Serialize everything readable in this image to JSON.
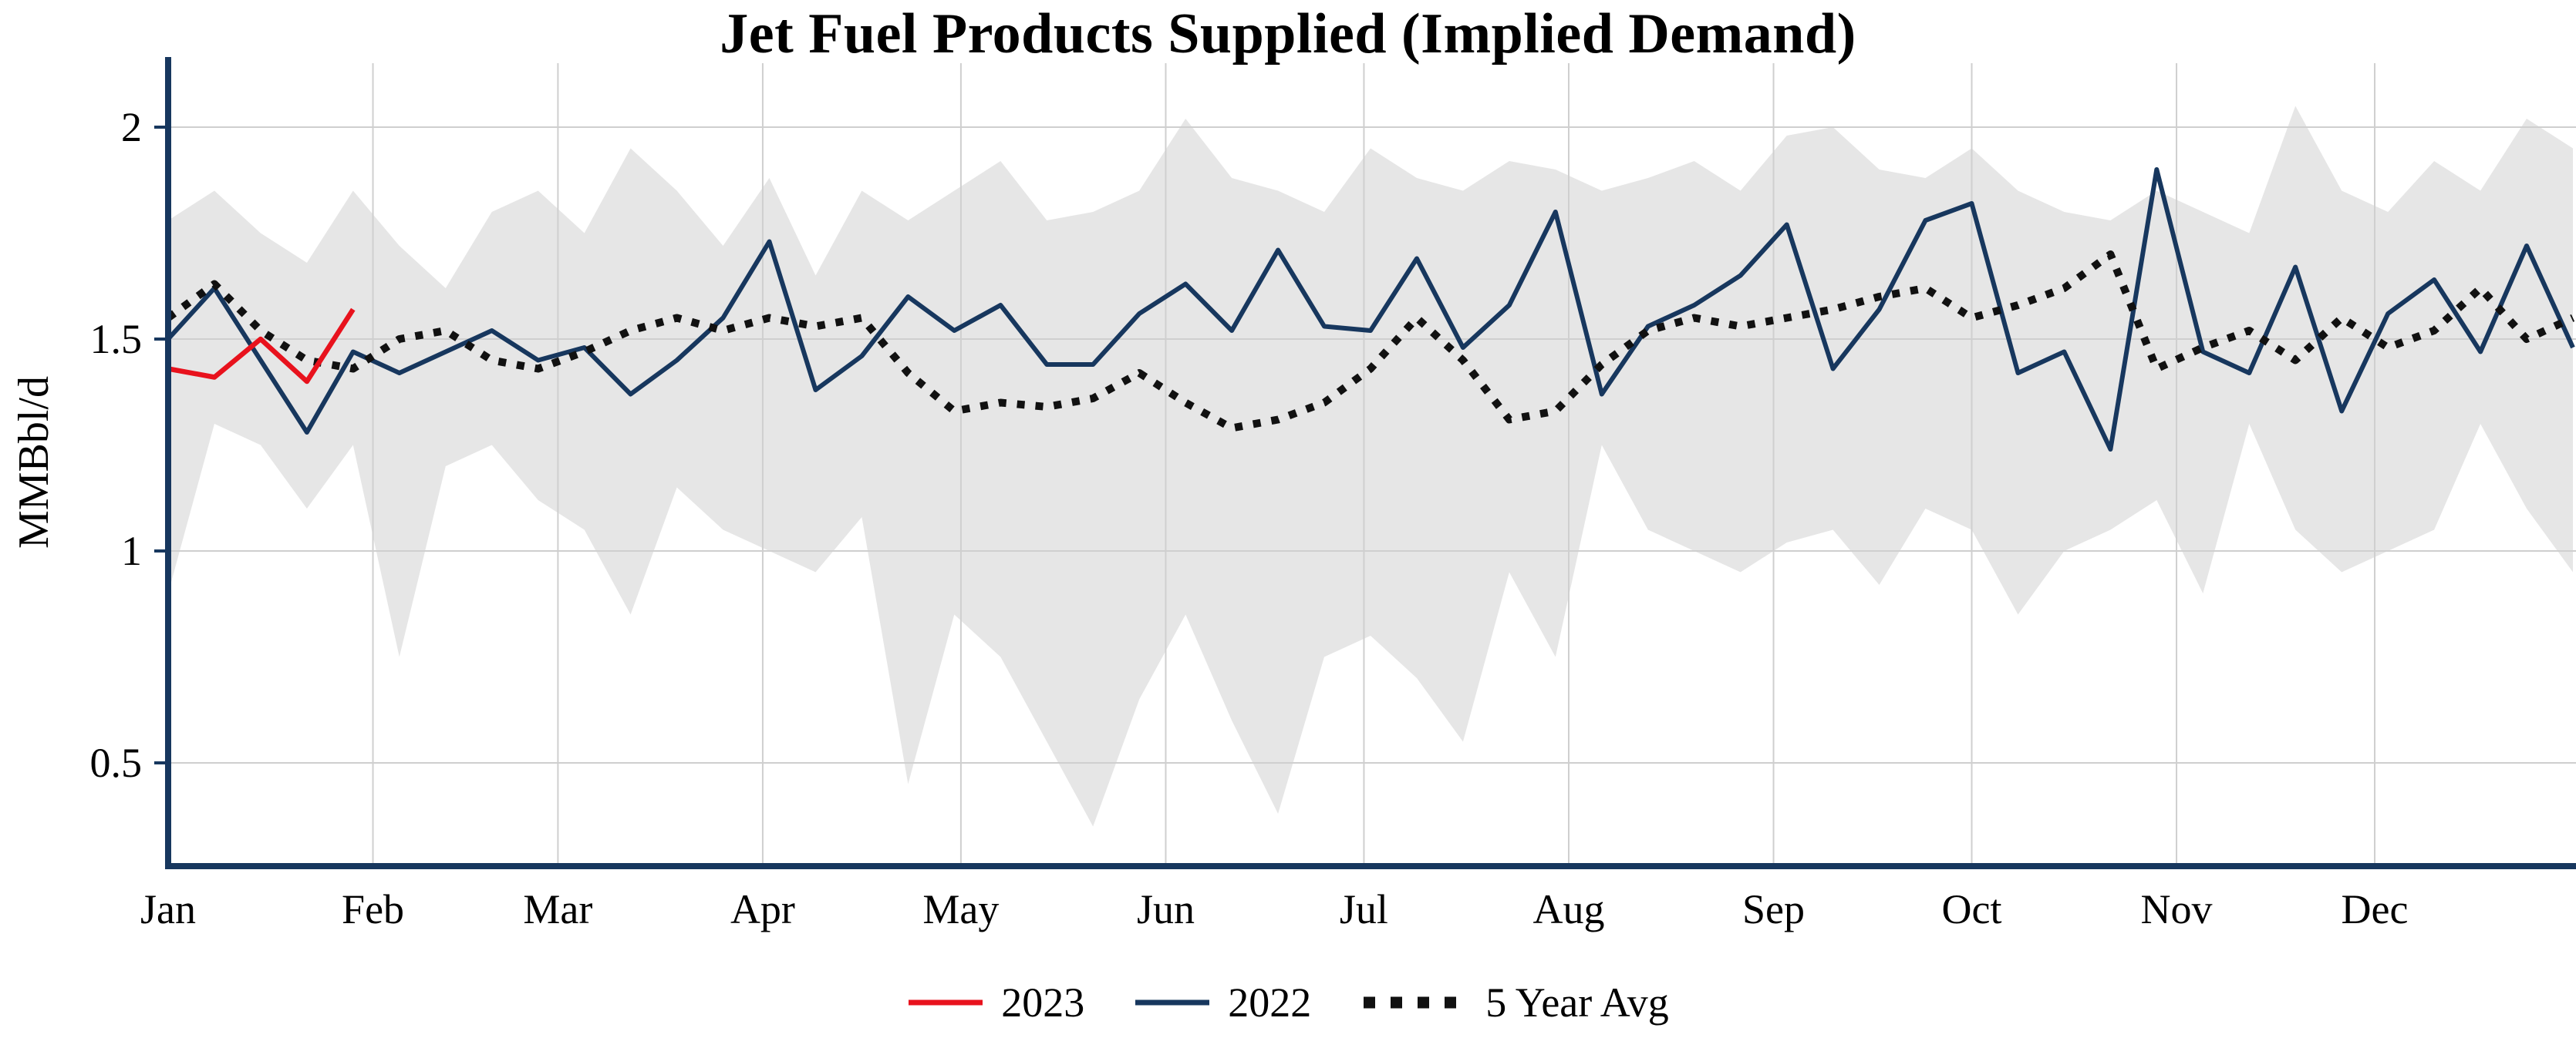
{
  "chart_data": {
    "type": "line",
    "title": "Jet Fuel Products Supplied (Implied Demand)",
    "ylabel": "MMBbl/d",
    "frequency": "weekly",
    "months": [
      "Jan",
      "Feb",
      "Mar",
      "Apr",
      "May",
      "Jun",
      "Jul",
      "Aug",
      "Sep",
      "Oct",
      "Nov",
      "Dec"
    ],
    "yticks": [
      0.5,
      1,
      1.5,
      2
    ],
    "ytick_labels": [
      "0.5",
      "1",
      "1.5",
      "2"
    ],
    "ylim": [
      0.26,
      2.15
    ],
    "grid": true,
    "legend_position": "bottom",
    "series": [
      {
        "name": "2023",
        "color": "#e8121d",
        "style": "solid",
        "values": [
          1.43,
          1.41,
          1.5,
          1.4,
          1.57
        ]
      },
      {
        "name": "2022",
        "color": "#17375e",
        "style": "solid",
        "values": [
          1.5,
          1.62,
          1.45,
          1.28,
          1.47,
          1.42,
          1.47,
          1.52,
          1.45,
          1.48,
          1.37,
          1.45,
          1.55,
          1.73,
          1.38,
          1.46,
          1.6,
          1.52,
          1.58,
          1.44,
          1.44,
          1.56,
          1.63,
          1.52,
          1.71,
          1.53,
          1.52,
          1.69,
          1.48,
          1.58,
          1.8,
          1.37,
          1.53,
          1.58,
          1.65,
          1.77,
          1.43,
          1.57,
          1.78,
          1.82,
          1.42,
          1.47,
          1.24,
          1.9,
          1.47,
          1.42,
          1.67,
          1.33,
          1.56,
          1.64,
          1.47,
          1.72,
          1.48
        ]
      },
      {
        "name": "5 Year Avg",
        "color": "#111111",
        "style": "dotted",
        "values": [
          1.55,
          1.63,
          1.52,
          1.45,
          1.43,
          1.5,
          1.52,
          1.45,
          1.43,
          1.47,
          1.52,
          1.55,
          1.52,
          1.55,
          1.53,
          1.55,
          1.42,
          1.33,
          1.35,
          1.34,
          1.36,
          1.42,
          1.35,
          1.29,
          1.31,
          1.35,
          1.43,
          1.55,
          1.45,
          1.31,
          1.33,
          1.44,
          1.52,
          1.55,
          1.53,
          1.55,
          1.57,
          1.6,
          1.62,
          1.55,
          1.58,
          1.62,
          1.7,
          1.43,
          1.48,
          1.52,
          1.45,
          1.55,
          1.48,
          1.52,
          1.62,
          1.5,
          1.55
        ]
      }
    ],
    "range_band": {
      "color": "#e6e6e6",
      "upper": [
        1.78,
        1.85,
        1.75,
        1.68,
        1.85,
        1.72,
        1.62,
        1.8,
        1.85,
        1.75,
        1.95,
        1.85,
        1.72,
        1.88,
        1.65,
        1.85,
        1.78,
        1.85,
        1.92,
        1.78,
        1.8,
        1.85,
        2.02,
        1.88,
        1.85,
        1.8,
        1.95,
        1.88,
        1.85,
        1.92,
        1.9,
        1.85,
        1.88,
        1.92,
        1.85,
        1.98,
        2.0,
        1.9,
        1.88,
        1.95,
        1.85,
        1.8,
        1.78,
        1.85,
        1.8,
        1.75,
        2.05,
        1.85,
        1.8,
        1.92,
        1.85,
        2.02,
        1.95
      ],
      "lower": [
        0.9,
        1.3,
        1.25,
        1.1,
        1.25,
        0.75,
        1.2,
        1.25,
        1.12,
        1.05,
        0.85,
        1.15,
        1.05,
        1.0,
        0.95,
        1.08,
        0.45,
        0.85,
        0.75,
        0.55,
        0.35,
        0.65,
        0.85,
        0.6,
        0.38,
        0.75,
        0.8,
        0.7,
        0.55,
        0.95,
        0.75,
        1.25,
        1.05,
        1.0,
        0.95,
        1.02,
        1.05,
        0.92,
        1.1,
        1.05,
        0.85,
        1.0,
        1.05,
        1.12,
        0.9,
        1.3,
        1.05,
        0.95,
        1.0,
        1.05,
        1.3,
        1.1,
        0.95
      ]
    }
  },
  "axis_color": "#17375e",
  "grid_color": "#cfcfcf"
}
